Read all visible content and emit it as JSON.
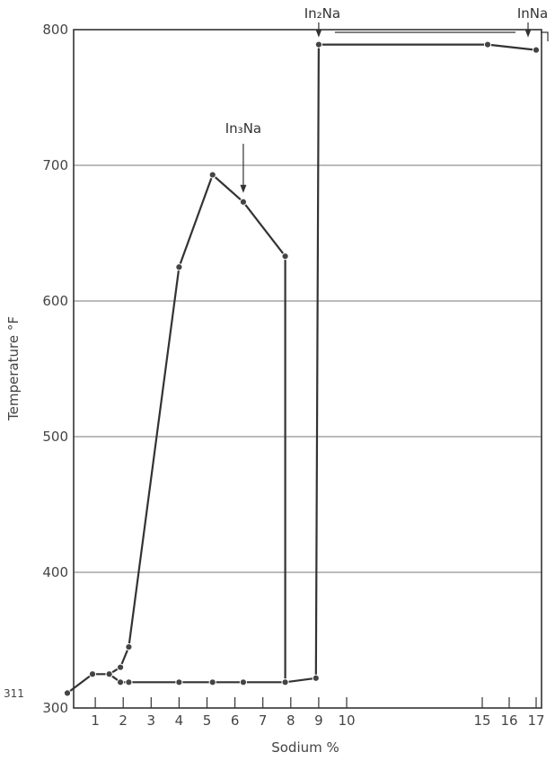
{
  "chart_data": {
    "type": "line",
    "xlabel": "Sodium %",
    "ylabel": "Temperature °F",
    "ylim": [
      300,
      800
    ],
    "yticks": [
      300,
      400,
      500,
      600,
      700,
      800
    ],
    "extra_y_label": "311",
    "xticks": [
      "1",
      "2",
      "3",
      "4",
      "5",
      "6",
      "7",
      "8",
      "9",
      "10",
      "15",
      "16",
      "17"
    ],
    "grid": true,
    "series": [
      {
        "points": [
          {
            "x": 0,
            "y": 311
          },
          {
            "x": 0.9,
            "y": 325
          },
          {
            "x": 1.5,
            "y": 325
          },
          {
            "x": 1.9,
            "y": 330
          },
          {
            "x": 2.2,
            "y": 345
          },
          {
            "x": 4.0,
            "y": 625
          },
          {
            "x": 5.2,
            "y": 693
          },
          {
            "x": 6.3,
            "y": 673
          },
          {
            "x": 7.8,
            "y": 633
          },
          {
            "x": 7.8,
            "y": 319
          },
          {
            "x": 6.3,
            "y": 319
          },
          {
            "x": 5.2,
            "y": 319
          },
          {
            "x": 4.0,
            "y": 319
          },
          {
            "x": 2.2,
            "y": 319
          },
          {
            "x": 1.9,
            "y": 319
          },
          {
            "x": 1.5,
            "y": 325
          }
        ]
      },
      {
        "points": [
          {
            "x": 7.8,
            "y": 319
          },
          {
            "x": 8.9,
            "y": 322
          },
          {
            "x": 9.0,
            "y": 789
          },
          {
            "x": 15.2,
            "y": 789
          },
          {
            "x": 17.0,
            "y": 785
          }
        ]
      }
    ],
    "annotations": [
      {
        "label": "In₃Na",
        "x": 6.3,
        "y": 673
      },
      {
        "label": "In₂Na",
        "x": 9.0,
        "y": 789
      },
      {
        "label": "InNa",
        "x": 16.7,
        "y": 789
      }
    ]
  }
}
